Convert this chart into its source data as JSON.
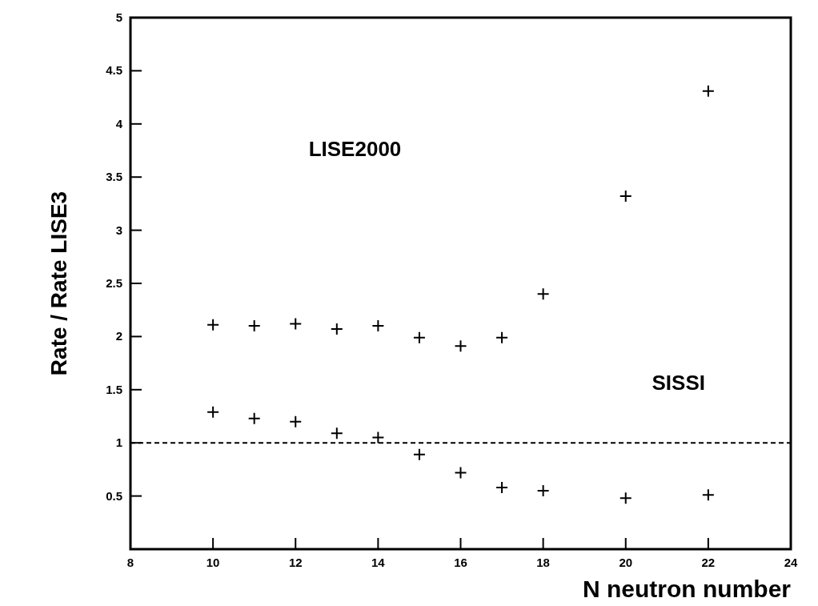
{
  "chart_data": {
    "type": "scatter",
    "xlabel": "N neutron number",
    "ylabel": "Rate / Rate LISE3",
    "xlim": [
      8,
      24
    ],
    "xticks": [
      8,
      10,
      12,
      14,
      16,
      18,
      20,
      22,
      24
    ],
    "ylim": [
      0,
      5
    ],
    "yticks": [
      0.5,
      1,
      1.5,
      2,
      2.5,
      3,
      3.5,
      4,
      4.5,
      5
    ],
    "marker": "cross",
    "grid": false,
    "series": [
      {
        "color": "#000000",
        "x": [
          10,
          11,
          12,
          13,
          14,
          15,
          16,
          17,
          18,
          20,
          22
        ],
        "values": [
          2.11,
          2.1,
          2.12,
          2.07,
          2.1,
          1.99,
          1.91,
          1.99,
          2.4,
          3.32,
          4.31
        ]
      },
      {
        "color": "#000000",
        "x": [
          10,
          11,
          12,
          13,
          14,
          15,
          16,
          17,
          18,
          20,
          22
        ],
        "values": [
          1.29,
          1.23,
          1.2,
          1.09,
          1.05,
          0.89,
          0.72,
          0.58,
          0.55,
          0.48,
          0.51
        ]
      }
    ],
    "ref_lines": [
      {
        "axis": "y",
        "value": 1,
        "line_style": "dashed",
        "color": "#000000"
      }
    ],
    "annotations": [
      "LISE2000",
      "SISSI"
    ]
  }
}
